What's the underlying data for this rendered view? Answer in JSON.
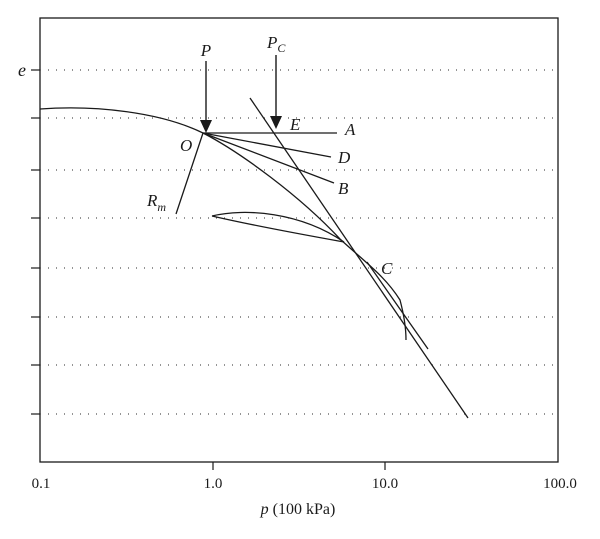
{
  "axes": {
    "y_symbol": "e",
    "x_title_var": "p",
    "x_title_unit": " (100 kPa)",
    "x_ticks": [
      "0.1",
      "1.0",
      "10.0",
      "100.0"
    ],
    "x_scale": "log",
    "grid": "dotted horizontal"
  },
  "labels": {
    "P": "P",
    "Pc_main": "P",
    "Pc_sub": "C",
    "E": "E",
    "A": "A",
    "O": "O",
    "D": "D",
    "B": "B",
    "Rm_main": "R",
    "Rm_sub": "m",
    "C": "C"
  }
}
